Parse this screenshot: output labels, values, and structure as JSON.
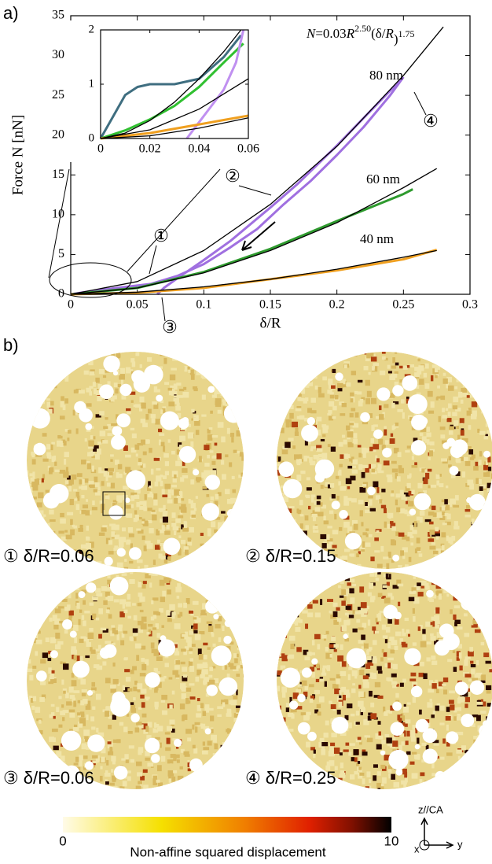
{
  "panel_a_label": "a)",
  "chart_data": [
    {
      "type": "line",
      "xlabel": "δ/R",
      "ylabel": "Force N [nN]",
      "formula_parts": [
        "N",
        "=0.03",
        "R",
        "2.50",
        "(δ/",
        "R",
        ")",
        "1.75"
      ],
      "annotations": [
        "80 nm",
        "60 nm",
        "40 nm"
      ],
      "markers": [
        "①",
        "②",
        "③",
        "④"
      ],
      "xlim": [
        0,
        0.3
      ],
      "xticks": [
        0,
        0.05,
        0.1,
        0.15,
        0.2,
        0.25,
        0.3
      ],
      "ylim": [
        0,
        35
      ],
      "yticks": [
        0,
        5,
        10,
        15,
        20,
        25,
        30,
        35
      ],
      "series": [
        {
          "color": "#a070e0",
          "x": [
            0,
            0.02,
            0.04,
            0.06,
            0.08,
            0.1,
            0.12,
            0.14,
            0.16,
            0.18,
            0.2,
            0.22,
            0.24,
            0.25
          ],
          "values": [
            0,
            0.5,
            0.9,
            1.3,
            2.3,
            3.8,
            5.9,
            8.2,
            11.3,
            14.2,
            17.5,
            21,
            25,
            27.3
          ]
        },
        {
          "color": "#a070e0",
          "x": [
            0.25,
            0.2,
            0.17,
            0.15,
            0.12,
            0.1,
            0.08,
            0.07,
            0.065
          ],
          "values": [
            27.3,
            18.7,
            13.8,
            10.9,
            6.7,
            4.3,
            2,
            0.8,
            0
          ]
        },
        {
          "color": "#2e9a2e",
          "x": [
            0,
            0.05,
            0.1,
            0.15,
            0.2,
            0.25,
            0.257
          ],
          "values": [
            0,
            0.8,
            2.8,
            5.7,
            9.2,
            12.6,
            13.2
          ]
        },
        {
          "color": "#f0a020",
          "x": [
            0,
            0.05,
            0.1,
            0.15,
            0.2,
            0.25,
            0.275
          ],
          "values": [
            0,
            0.2,
            0.8,
            1.9,
            3,
            4.4,
            5.6
          ]
        },
        {
          "color": "#000000",
          "x": [
            0,
            0.05,
            0.1,
            0.15,
            0.2,
            0.25,
            0.28
          ],
          "values": [
            0,
            1.6,
            5.5,
            11.3,
            18.6,
            27.5,
            33.6
          ]
        },
        {
          "color": "#000000",
          "x": [
            0,
            0.05,
            0.1,
            0.15,
            0.2,
            0.25,
            0.275
          ],
          "values": [
            0,
            0.79,
            2.7,
            5.5,
            9,
            13.4,
            15.8
          ]
        },
        {
          "color": "#000000",
          "x": [
            0,
            0.05,
            0.1,
            0.15,
            0.2,
            0.25,
            0.275
          ],
          "values": [
            0,
            0.27,
            0.94,
            1.9,
            3.15,
            4.66,
            5.5
          ]
        }
      ]
    },
    {
      "type": "line",
      "xlim": [
        0,
        0.06
      ],
      "xticks": [
        0,
        0.02,
        0.04,
        0.06
      ],
      "ylim": [
        0,
        2
      ],
      "yticks": [
        0,
        1,
        2
      ],
      "series": [
        {
          "color": "#3f6e80",
          "x": [
            0,
            0.005,
            0.01,
            0.015,
            0.02,
            0.03,
            0.04,
            0.05,
            0.057
          ],
          "values": [
            0,
            0.4,
            0.8,
            0.95,
            1,
            1,
            1.1,
            1.5,
            1.9
          ]
        },
        {
          "color": "#30c030",
          "x": [
            0,
            0.01,
            0.02,
            0.03,
            0.04,
            0.05,
            0.058
          ],
          "values": [
            0,
            0.15,
            0.35,
            0.6,
            0.95,
            1.4,
            1.75
          ]
        },
        {
          "color": "#c090f0",
          "x": [
            0.035,
            0.04,
            0.045,
            0.05,
            0.055,
            0.058
          ],
          "values": [
            0,
            0.3,
            0.6,
            0.9,
            1.4,
            2
          ]
        },
        {
          "color": "#f0a020",
          "x": [
            0,
            0.01,
            0.02,
            0.03,
            0.04,
            0.05,
            0.06
          ],
          "values": [
            0,
            0.05,
            0.1,
            0.18,
            0.26,
            0.34,
            0.42
          ]
        },
        {
          "color": "#000000",
          "x": [
            0,
            0.01,
            0.02,
            0.03,
            0.04,
            0.05,
            0.057
          ],
          "values": [
            0,
            0.1,
            0.33,
            0.67,
            1.1,
            1.6,
            2
          ]
        },
        {
          "color": "#000000",
          "x": [
            0,
            0.02,
            0.04,
            0.06
          ],
          "values": [
            0,
            0.16,
            0.54,
            1.1
          ]
        },
        {
          "color": "#000000",
          "x": [
            0,
            0.02,
            0.04,
            0.06
          ],
          "values": [
            0,
            0.05,
            0.19,
            0.38
          ]
        }
      ]
    }
  ],
  "panel_b": {
    "panel_label": "b)",
    "images": [
      {
        "marker": "①",
        "label": "δ/R=0.06"
      },
      {
        "marker": "②",
        "label": "δ/R=0.15"
      },
      {
        "marker": "③",
        "label": "δ/R=0.06"
      },
      {
        "marker": "④",
        "label": "δ/R=0.25"
      }
    ],
    "colorbar": {
      "min": 0,
      "max": 10,
      "ticks": [
        0,
        10
      ],
      "label": "Non-affine squared displacement"
    },
    "axes_icon": {
      "up": "z//CA",
      "x": "x",
      "y": "y"
    }
  }
}
